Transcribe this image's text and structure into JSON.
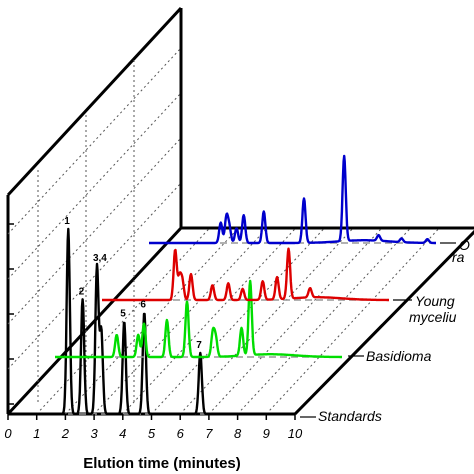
{
  "chart_data": {
    "type": "line",
    "title": "",
    "xlabel": "Elution time (minutes)",
    "ylabel": "",
    "xlim": [
      0,
      10
    ],
    "x_ticks": [
      "0",
      "1",
      "2",
      "3",
      "4",
      "5",
      "6",
      "7",
      "8",
      "9",
      "10"
    ],
    "grid": true,
    "layout": "3D stacked waterfall, series offset diagonally back",
    "series": [
      {
        "name": "Standards",
        "color": "#000000",
        "peaks": [
          {
            "label": "1",
            "x": 2.1,
            "height": 1.0
          },
          {
            "label": "2",
            "x": 2.6,
            "height": 0.62
          },
          {
            "label": "3,4",
            "x": 3.1,
            "height": 0.8
          },
          {
            "label": "",
            "x": 3.25,
            "height": 0.45
          },
          {
            "label": "5",
            "x": 4.05,
            "height": 0.5
          },
          {
            "label": "6",
            "x": 4.75,
            "height": 0.55
          },
          {
            "label": "7",
            "x": 6.7,
            "height": 0.33
          }
        ]
      },
      {
        "name": "Basidioma",
        "color": "#00dd00",
        "peaks": [
          {
            "x": 2.15,
            "height": 0.12
          },
          {
            "x": 2.9,
            "height": 0.12
          },
          {
            "x": 3.1,
            "height": 0.18
          },
          {
            "x": 3.9,
            "height": 0.2
          },
          {
            "x": 4.6,
            "height": 0.3
          },
          {
            "x": 5.5,
            "height": 0.13
          },
          {
            "x": 5.6,
            "height": 0.1
          },
          {
            "x": 6.5,
            "height": 0.15
          },
          {
            "x": 6.8,
            "height": 0.4
          }
        ]
      },
      {
        "name": "Young mycelium",
        "color": "#dd0000",
        "peaks": [
          {
            "x": 2.55,
            "height": 0.27
          },
          {
            "x": 2.7,
            "height": 0.12
          },
          {
            "x": 2.8,
            "height": 0.1
          },
          {
            "x": 3.1,
            "height": 0.14
          },
          {
            "x": 3.85,
            "height": 0.08
          },
          {
            "x": 4.4,
            "height": 0.09
          },
          {
            "x": 4.9,
            "height": 0.06
          },
          {
            "x": 5.6,
            "height": 0.1
          },
          {
            "x": 6.1,
            "height": 0.12
          },
          {
            "x": 6.5,
            "height": 0.27
          },
          {
            "x": 7.25,
            "height": 0.05
          }
        ]
      },
      {
        "name": "O... ra...",
        "color": "#0000cc",
        "peaks": [
          {
            "x": 2.5,
            "height": 0.11
          },
          {
            "x": 2.7,
            "height": 0.14
          },
          {
            "x": 2.8,
            "height": 0.08
          },
          {
            "x": 3.05,
            "height": 0.08
          },
          {
            "x": 3.3,
            "height": 0.15
          },
          {
            "x": 4.0,
            "height": 0.17
          },
          {
            "x": 5.4,
            "height": 0.24
          },
          {
            "x": 6.8,
            "height": 0.46
          },
          {
            "x": 8.0,
            "height": 0.03
          },
          {
            "x": 8.8,
            "height": 0.02
          },
          {
            "x": 9.7,
            "height": 0.02
          }
        ]
      }
    ]
  },
  "labels": {
    "xlabel": "Elution time (minutes)",
    "series_standards": "Standards",
    "series_basidioma": "Basidioma",
    "series_young_1": "Young",
    "series_young_2": "myceliu",
    "series_top_1": "O",
    "series_top_2": "ra"
  }
}
